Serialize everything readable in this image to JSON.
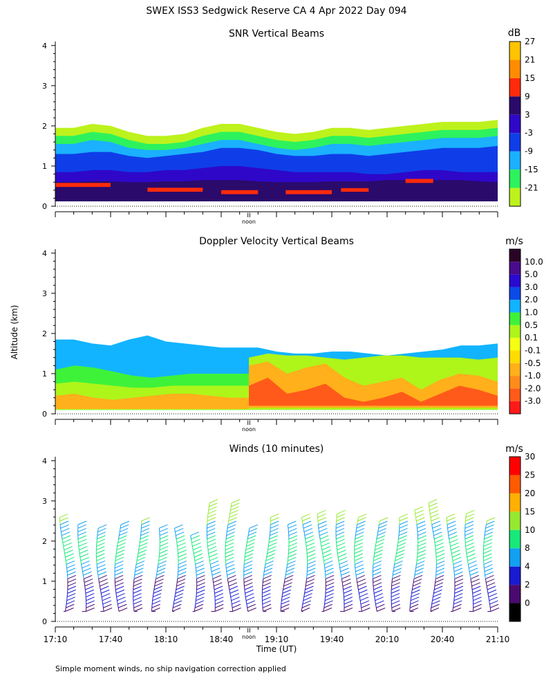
{
  "page": {
    "title": "SWEX ISS3 Sedgwick Reserve CA    4 Apr 2022 Day 094",
    "footnote": "Simple moment winds, no ship navigation correction applied",
    "shared_ylabel": "Altitude (km)",
    "shared_xlabel": "Time (UT)",
    "noon_label": "noon",
    "noon_marker": "II"
  },
  "chart_data": [
    {
      "type": "heatmap",
      "title": "SNR Vertical Beams",
      "ylabel": "Altitude (km)",
      "ylim": [
        0,
        4.1
      ],
      "yticks": [
        0,
        1,
        2,
        3,
        4
      ],
      "xlim": [
        "17:10",
        "21:10"
      ],
      "colorbar": {
        "unit": "dB",
        "colors": [
          "#bdf21c",
          "#2df25e",
          "#1bb1ff",
          "#0f3ee8",
          "#2f07c9",
          "#2a0a6b",
          "#ff2b0a",
          "#ff8c00",
          "#ffc400"
        ],
        "labels": [
          "-21",
          "-15",
          "-9",
          "-3",
          "3",
          "9",
          "15",
          "21",
          "27"
        ]
      },
      "layers": [
        {
          "color": "#bdf21c",
          "bottom": 1.3,
          "top": [
            1.95,
            1.95,
            2.05,
            2.0,
            1.85,
            1.75,
            1.75,
            1.8,
            1.95,
            2.05,
            2.05,
            1.95,
            1.85,
            1.8,
            1.85,
            1.95,
            1.95,
            1.9,
            1.95,
            2.0,
            2.05,
            2.1,
            2.1,
            2.1,
            2.15
          ]
        },
        {
          "color": "#2df25e",
          "bottom": 1.1,
          "top": [
            1.75,
            1.75,
            1.85,
            1.8,
            1.65,
            1.55,
            1.55,
            1.6,
            1.75,
            1.85,
            1.85,
            1.75,
            1.65,
            1.6,
            1.65,
            1.75,
            1.75,
            1.7,
            1.75,
            1.8,
            1.85,
            1.9,
            1.9,
            1.9,
            1.95
          ]
        },
        {
          "color": "#1bb1ff",
          "bottom": 0.9,
          "top": [
            1.55,
            1.55,
            1.65,
            1.6,
            1.45,
            1.4,
            1.4,
            1.45,
            1.55,
            1.65,
            1.65,
            1.55,
            1.45,
            1.4,
            1.45,
            1.55,
            1.55,
            1.5,
            1.55,
            1.6,
            1.65,
            1.7,
            1.7,
            1.7,
            1.75
          ]
        },
        {
          "color": "#0f3ee8",
          "bottom": 0.55,
          "top": [
            1.3,
            1.3,
            1.35,
            1.35,
            1.25,
            1.2,
            1.25,
            1.3,
            1.35,
            1.45,
            1.45,
            1.4,
            1.3,
            1.25,
            1.25,
            1.3,
            1.3,
            1.25,
            1.3,
            1.35,
            1.4,
            1.45,
            1.45,
            1.45,
            1.5
          ]
        },
        {
          "color": "#2f07c9",
          "bottom": 0.25,
          "top": [
            0.85,
            0.85,
            0.9,
            0.9,
            0.85,
            0.85,
            0.9,
            0.9,
            0.95,
            1.0,
            1.0,
            0.95,
            0.9,
            0.85,
            0.85,
            0.85,
            0.85,
            0.8,
            0.8,
            0.85,
            0.9,
            0.9,
            0.85,
            0.85,
            0.85
          ]
        },
        {
          "color": "#2a0a6b",
          "bottom": 0.12,
          "top": [
            0.6,
            0.6,
            0.62,
            0.62,
            0.6,
            0.6,
            0.62,
            0.62,
            0.65,
            0.65,
            0.65,
            0.62,
            0.6,
            0.6,
            0.6,
            0.62,
            0.62,
            0.62,
            0.65,
            0.65,
            0.65,
            0.65,
            0.65,
            0.62,
            0.6
          ]
        }
      ],
      "strong_echo": [
        {
          "t0": "17:10",
          "t1": "17:40",
          "z0": 0.48,
          "z1": 0.58
        },
        {
          "t0": "18:00",
          "t1": "18:30",
          "z0": 0.36,
          "z1": 0.46
        },
        {
          "t0": "18:40",
          "t1": "19:00",
          "z0": 0.3,
          "z1": 0.4
        },
        {
          "t0": "19:15",
          "t1": "19:40",
          "z0": 0.3,
          "z1": 0.4
        },
        {
          "t0": "19:45",
          "t1": "20:00",
          "z0": 0.36,
          "z1": 0.45
        },
        {
          "t0": "20:20",
          "t1": "20:35",
          "z0": 0.58,
          "z1": 0.68
        }
      ]
    },
    {
      "type": "heatmap",
      "title": "Doppler Velocity Vertical Beams",
      "ylabel": "Altitude (km)",
      "ylim": [
        0,
        4.1
      ],
      "yticks": [
        0,
        1,
        2,
        3,
        4
      ],
      "xlim": [
        "17:10",
        "21:10"
      ],
      "colorbar": {
        "unit": "m/s",
        "colors": [
          "#ff1a1a",
          "#ff5a1a",
          "#ff8c1a",
          "#ffb01a",
          "#ffdc00",
          "#f4ff14",
          "#aef51a",
          "#3ef23a",
          "#12b4ff",
          "#0a4ae8",
          "#2a0ad0",
          "#4a0a8c",
          "#2a0426"
        ],
        "labels": [
          "-3.0",
          "-2.0",
          "-1.0",
          "-0.5",
          "-0.1",
          "0.1",
          "0.5",
          "1.0",
          "2.0",
          "3.0",
          "5.0",
          "10.0"
        ]
      },
      "layers": [
        {
          "color": "#12b4ff",
          "t0": "17:10",
          "t1": "21:10",
          "bottom": 0.1,
          "top": [
            1.85,
            1.85,
            1.75,
            1.7,
            1.85,
            1.95,
            1.8,
            1.75,
            1.7,
            1.65,
            1.65,
            1.65,
            1.55,
            1.5,
            1.5,
            1.55,
            1.55,
            1.5,
            1.45,
            1.5,
            1.55,
            1.6,
            1.7,
            1.7,
            1.75
          ]
        },
        {
          "color": "#3ef23a",
          "t0": "17:10",
          "t1": "18:55",
          "bottom": 0.1,
          "top": [
            1.1,
            1.2,
            1.15,
            1.05,
            0.95,
            0.9,
            0.95,
            1.0,
            1.0,
            1.0,
            1.0
          ]
        },
        {
          "color": "#aef51a",
          "t0": "17:10",
          "t1": "18:55",
          "bottom": 0.1,
          "top": [
            0.75,
            0.8,
            0.75,
            0.7,
            0.65,
            0.65,
            0.7,
            0.7,
            0.7,
            0.7,
            0.7
          ]
        },
        {
          "color": "#ffb01a",
          "t0": "17:10",
          "t1": "18:55",
          "bottom": 0.12,
          "top": [
            0.45,
            0.5,
            0.4,
            0.35,
            0.4,
            0.45,
            0.5,
            0.5,
            0.45,
            0.4,
            0.4
          ]
        },
        {
          "color": "#aef51a",
          "t0": "18:55",
          "t1": "21:10",
          "bottom": 0.1,
          "top": [
            1.4,
            1.5,
            1.45,
            1.45,
            1.4,
            1.35,
            1.4,
            1.45,
            1.45,
            1.4,
            1.4,
            1.4,
            1.35,
            1.4
          ]
        },
        {
          "color": "#ffb01a",
          "t0": "18:55",
          "t1": "21:10",
          "bottom": 0.15,
          "top": [
            1.2,
            1.3,
            1.0,
            1.15,
            1.25,
            0.9,
            0.7,
            0.8,
            0.9,
            0.6,
            0.85,
            1.0,
            0.95,
            0.8
          ]
        },
        {
          "color": "#ff5a1a",
          "t0": "18:55",
          "t1": "21:10",
          "bottom": 0.2,
          "top": [
            0.7,
            0.9,
            0.5,
            0.6,
            0.75,
            0.4,
            0.3,
            0.4,
            0.55,
            0.3,
            0.5,
            0.7,
            0.6,
            0.45
          ]
        }
      ]
    },
    {
      "type": "wind_barbs",
      "title": "Winds (10 minutes)",
      "ylabel": "Altitude (km)",
      "xlabel": "Time (UT)",
      "ylim": [
        0,
        4.1
      ],
      "yticks": [
        0,
        1,
        2,
        3,
        4
      ],
      "xlim": [
        "17:10",
        "21:10"
      ],
      "xticks": [
        "17:10",
        "17:40",
        "18:10",
        "18:40",
        "19:10",
        "19:40",
        "20:10",
        "20:40",
        "21:10"
      ],
      "colorbar": {
        "unit": "m/s",
        "colors": [
          "#000000",
          "#4a0a6e",
          "#1a1ad0",
          "#12a0f0",
          "#18e87a",
          "#96e830",
          "#ffb000",
          "#ff5a00",
          "#ff0000"
        ],
        "labels": [
          "0",
          "2",
          "4",
          "8",
          "10",
          "15",
          "20",
          "25",
          "30"
        ]
      },
      "profile_times": [
        "17:10",
        "17:20",
        "17:30",
        "17:40",
        "17:50",
        "18:00",
        "18:10",
        "18:20",
        "18:30",
        "18:40",
        "18:50",
        "19:00",
        "19:10",
        "19:20",
        "19:30",
        "19:40",
        "19:50",
        "20:00",
        "20:10",
        "20:20",
        "20:30",
        "20:40",
        "20:50",
        "21:00"
      ],
      "profile_tops_km": [
        2.65,
        2.45,
        2.4,
        2.45,
        2.5,
        2.4,
        2.35,
        2.2,
        2.95,
        2.95,
        2.4,
        2.6,
        2.45,
        2.6,
        2.75,
        2.7,
        2.65,
        2.55,
        2.6,
        2.8,
        2.95,
        2.65,
        2.7,
        2.55
      ]
    }
  ],
  "colors": {
    "axis": "#000000",
    "background": "#ffffff"
  }
}
